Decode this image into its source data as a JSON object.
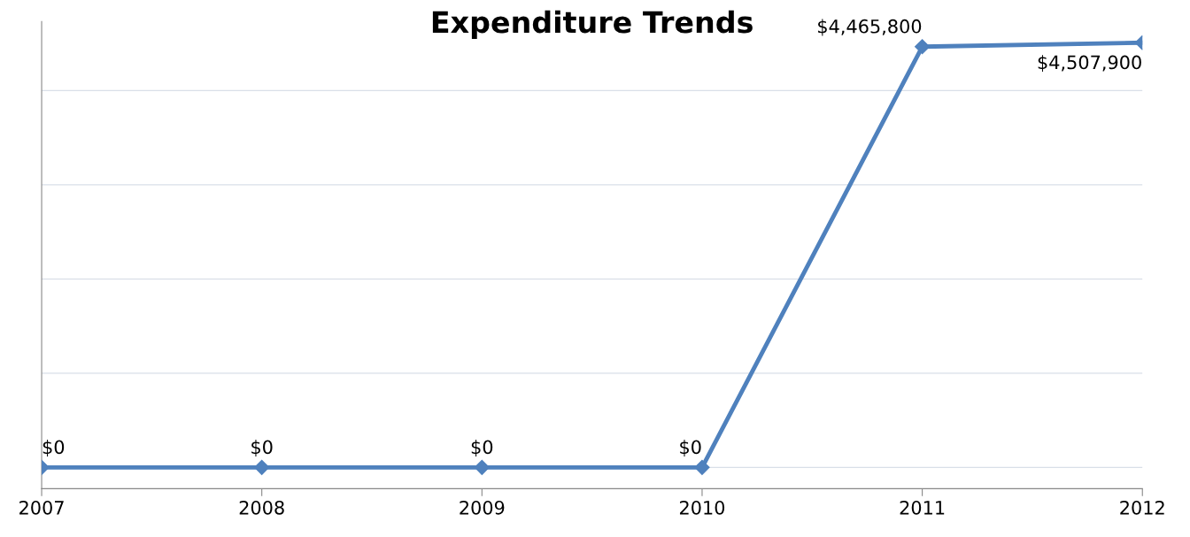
{
  "chart_data": {
    "type": "line",
    "title": "Expenditure Trends",
    "categories": [
      "2007",
      "2008",
      "2009",
      "2010",
      "2011",
      "2012"
    ],
    "series": [
      {
        "color": "#4f81bd",
        "values": [
          0,
          0,
          0,
          0,
          4465800,
          4507900
        ],
        "value_labels": [
          "$0",
          "$0",
          "$0",
          "$0",
          "$4,465,800",
          "$4,507,900"
        ]
      }
    ],
    "tick_labels": "x",
    "grid": "y",
    "marker": "diamond",
    "line_style": "solid",
    "legend": false
  }
}
